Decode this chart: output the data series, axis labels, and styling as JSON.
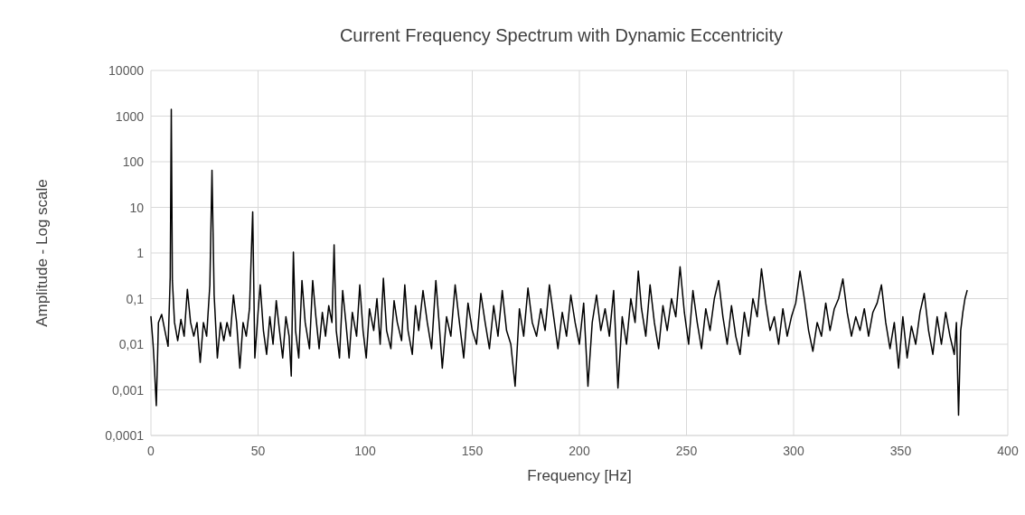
{
  "chart_data": {
    "type": "line",
    "title": "Current Frequency Spectrum with Dynamic Eccentricity",
    "xlabel": "Frequency [Hz]",
    "ylabel": "Amplitude - Log scale",
    "log": "y",
    "grid": true,
    "marker": "none",
    "line_style": "solid",
    "xlim": [
      0,
      400
    ],
    "xticks": [
      0,
      50,
      100,
      150,
      200,
      250,
      300,
      350,
      400
    ],
    "ylim": [
      0.0001,
      10000
    ],
    "yticks": [
      {
        "value": 0.0001,
        "label": "0,0001"
      },
      {
        "value": 0.001,
        "label": "0,001"
      },
      {
        "value": 0.01,
        "label": "0,01"
      },
      {
        "value": 0.1,
        "label": "0,1"
      },
      1,
      10,
      100,
      1000,
      10000
    ],
    "series": [
      {
        "color": "#000000",
        "x": [
          0,
          1,
          1.5,
          2.5,
          3.5,
          5,
          6.5,
          8,
          9,
          9.5,
          10,
          11,
          12.5,
          14,
          15.5,
          17,
          18.5,
          20,
          21.5,
          23,
          24.5,
          26,
          27.5,
          28.5,
          29.5,
          31,
          32.5,
          34,
          35.5,
          37,
          38.5,
          40,
          41.5,
          43,
          44.5,
          46,
          47.5,
          48.5,
          50,
          51,
          52.5,
          54,
          55.5,
          57,
          58.5,
          60,
          61.5,
          63,
          64.5,
          65.5,
          66.5,
          67.5,
          69,
          70.5,
          72,
          74,
          75.5,
          77,
          78.5,
          80,
          81.5,
          83,
          84.5,
          85.5,
          86.5,
          88,
          89.5,
          91,
          92.5,
          94,
          96,
          97.5,
          99,
          100.5,
          102,
          104,
          105.5,
          107,
          108.5,
          110,
          112,
          113.5,
          115,
          117,
          118.5,
          120,
          122,
          123.5,
          125,
          127,
          129,
          131,
          133,
          134.5,
          136,
          138,
          140,
          142,
          144,
          146,
          148,
          150,
          152,
          154,
          156,
          158,
          160,
          162,
          164,
          166,
          168,
          170,
          172,
          174,
          176,
          178,
          180,
          182,
          184,
          186,
          188,
          190,
          192,
          194,
          196,
          198,
          200,
          202,
          204,
          206,
          208,
          210,
          212,
          214,
          216,
          218,
          220,
          222,
          224,
          226,
          227.5,
          229,
          231,
          233,
          235,
          237,
          239,
          241,
          243,
          245,
          247,
          249,
          251,
          253,
          255,
          257,
          259,
          261,
          263,
          265,
          267,
          269,
          271,
          273,
          275,
          277,
          279,
          281,
          283,
          285,
          287,
          289,
          291,
          293,
          295,
          297,
          299,
          301,
          303,
          305,
          307,
          309,
          311,
          313,
          315,
          317,
          319,
          321,
          323,
          325,
          327,
          329,
          331,
          333,
          335,
          337,
          339,
          341,
          343,
          345,
          347,
          349,
          351,
          353,
          355,
          357,
          359,
          361,
          363,
          365,
          367,
          369,
          371,
          373,
          375,
          376,
          377,
          378,
          379,
          380,
          381
        ],
        "values": [
          0.04,
          0.01,
          0.004,
          0.00045,
          0.03,
          0.045,
          0.02,
          0.009,
          0.3,
          1400,
          0.25,
          0.03,
          0.012,
          0.035,
          0.015,
          0.16,
          0.03,
          0.015,
          0.03,
          0.004,
          0.03,
          0.015,
          0.2,
          65,
          0.12,
          0.005,
          0.03,
          0.012,
          0.03,
          0.015,
          0.12,
          0.03,
          0.003,
          0.03,
          0.015,
          0.06,
          8,
          0.005,
          0.05,
          0.2,
          0.02,
          0.006,
          0.04,
          0.01,
          0.09,
          0.02,
          0.005,
          0.04,
          0.015,
          0.002,
          1.05,
          0.02,
          0.005,
          0.25,
          0.03,
          0.008,
          0.25,
          0.04,
          0.008,
          0.05,
          0.015,
          0.07,
          0.03,
          1.5,
          0.02,
          0.005,
          0.15,
          0.03,
          0.005,
          0.05,
          0.015,
          0.2,
          0.02,
          0.005,
          0.06,
          0.02,
          0.1,
          0.01,
          0.28,
          0.02,
          0.008,
          0.09,
          0.03,
          0.012,
          0.2,
          0.02,
          0.006,
          0.07,
          0.02,
          0.15,
          0.03,
          0.008,
          0.25,
          0.03,
          0.003,
          0.04,
          0.015,
          0.2,
          0.03,
          0.005,
          0.08,
          0.02,
          0.01,
          0.13,
          0.03,
          0.008,
          0.07,
          0.015,
          0.15,
          0.02,
          0.01,
          0.0012,
          0.06,
          0.015,
          0.17,
          0.03,
          0.015,
          0.06,
          0.02,
          0.2,
          0.04,
          0.008,
          0.05,
          0.015,
          0.12,
          0.03,
          0.01,
          0.08,
          0.0012,
          0.03,
          0.12,
          0.02,
          0.06,
          0.015,
          0.15,
          0.0011,
          0.04,
          0.01,
          0.1,
          0.03,
          0.4,
          0.06,
          0.015,
          0.2,
          0.03,
          0.008,
          0.07,
          0.02,
          0.1,
          0.04,
          0.5,
          0.05,
          0.01,
          0.15,
          0.03,
          0.008,
          0.06,
          0.02,
          0.1,
          0.25,
          0.04,
          0.01,
          0.07,
          0.015,
          0.006,
          0.05,
          0.015,
          0.1,
          0.04,
          0.45,
          0.08,
          0.02,
          0.04,
          0.01,
          0.06,
          0.015,
          0.04,
          0.08,
          0.4,
          0.1,
          0.02,
          0.007,
          0.03,
          0.015,
          0.08,
          0.02,
          0.06,
          0.1,
          0.27,
          0.05,
          0.015,
          0.04,
          0.02,
          0.06,
          0.015,
          0.05,
          0.08,
          0.2,
          0.03,
          0.008,
          0.03,
          0.003,
          0.04,
          0.005,
          0.025,
          0.01,
          0.05,
          0.13,
          0.02,
          0.006,
          0.04,
          0.01,
          0.05,
          0.015,
          0.006,
          0.03,
          0.00028,
          0.02,
          0.05,
          0.1,
          0.15
        ]
      }
    ]
  }
}
